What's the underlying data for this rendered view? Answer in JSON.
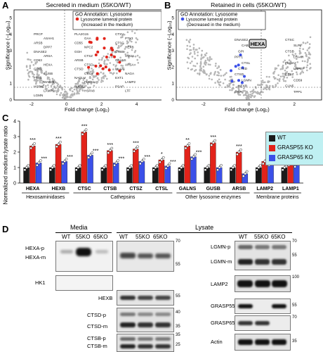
{
  "panel_a": {
    "letter": "A",
    "title": "Secreted in medium (55KO/WT)",
    "xlabel": "Fold change (Log₂)",
    "ylabel": "Significance (−Log₁₀)",
    "xticks": [
      "-2",
      "0",
      "2",
      "4"
    ],
    "yticks": [
      "0",
      "1",
      "2",
      "3",
      "4",
      "5"
    ],
    "legend_title": "GO Annotation: Lysosome",
    "legend_item": "Lysosome lumenal protein",
    "legend_note": "(Increased in the medium)",
    "gene_labels": [
      "PRCP",
      "PLA2G15",
      "CTSV",
      "ASAH1",
      "GAA",
      "PTX3",
      "ARSB",
      "CD55",
      "CTSC",
      "DPP7",
      "NPC2",
      "HEXB",
      "DNASE2",
      "GGH",
      "CTSB",
      "ARSA",
      "CTSZ",
      "GM2A",
      "CD63",
      "ARSB",
      "GALNS",
      "HEXA",
      "CTSD",
      "ARSA",
      "CD59",
      "CTSD",
      "HLA-C",
      "GUSB",
      "CTSA",
      "NAGA",
      "FTH1",
      "NAGLU",
      "EXT1",
      "MAN2B1",
      "FUCA1",
      "LAMP2",
      "HSPA5",
      "FUCA2",
      "PSAP",
      "LAMP1",
      "HSPA8",
      "LTF",
      "LGMN"
    ]
  },
  "panel_b": {
    "letter": "B",
    "title": "Retained in cells (55KO/WT)",
    "xlabel": "Fold change (Log₂)",
    "ylabel": "Significance (−Log₁₀)",
    "xticks": [
      "-2",
      "0",
      "2"
    ],
    "yticks": [
      "0",
      "1",
      "2",
      "3",
      "4",
      "5"
    ],
    "legend_title": "GO Annotation: Lysosome",
    "legend_item": "Lysosome lumenal protein",
    "legend_note": "(Decreased in the medium)",
    "highlight_label": "HEXA",
    "gene_labels": [
      "DNASE2",
      "CTSC",
      "CAB39",
      "SLPI",
      "GPI",
      "CTSB",
      "PPT1",
      "LTA4H",
      "CTSL",
      "FUCA2",
      "CTSD",
      "LNPEP",
      "CTSD",
      "CTSZ",
      "LGMN",
      "CD59",
      "HEXB",
      "CLN5",
      "GGA",
      "TPP1"
    ]
  },
  "panel_c": {
    "letter": "C",
    "ylabel": "Normalized medium:lysate ratio",
    "yticks": [
      "0",
      "1",
      "2",
      "3",
      "4"
    ],
    "legend": [
      {
        "name": "WT",
        "color": "#1a1a1a"
      },
      {
        "name": "GRASP55 KO",
        "color": "#e2231a"
      },
      {
        "name": "GRASP65 KO",
        "color": "#3b50e8"
      }
    ],
    "groups": [
      {
        "label": "Hexosaminidases",
        "span": [
          0,
          1
        ]
      },
      {
        "label": "Cathepsins",
        "span": [
          2,
          5
        ]
      },
      {
        "label": "Other lysosome enzymes",
        "span": [
          6,
          8
        ]
      },
      {
        "label": "Membrane proteins",
        "span": [
          9,
          10
        ]
      }
    ]
  },
  "chart_data": {
    "type": "bar",
    "categories": [
      "HEXA",
      "HEXB",
      "CTSC",
      "CTSB",
      "CTSZ",
      "CTSL",
      "GALNS",
      "GUSB",
      "ARSB",
      "LAMP2",
      "LAMP1"
    ],
    "series": [
      {
        "name": "WT",
        "values": [
          1,
          1,
          1,
          1,
          1,
          1,
          1,
          1,
          1,
          1,
          1
        ]
      },
      {
        "name": "GRASP55 KO",
        "values": [
          2.4,
          2.5,
          3.3,
          2.1,
          2.2,
          1.5,
          2.4,
          2.6,
          2.0,
          1.4,
          1.3
        ]
      },
      {
        "name": "GRASP65 KO",
        "values": [
          1.3,
          1.4,
          1.8,
          1.3,
          1.4,
          1.1,
          1.7,
          1.0,
          0.6,
          1.3,
          1.2
        ]
      }
    ],
    "significance": {
      "GRASP55 KO": [
        "***",
        "***",
        "***",
        "***",
        "***",
        "*",
        "**",
        "***",
        "***",
        "",
        ""
      ],
      "GRASP65 KO": [
        "***",
        "***",
        "***",
        "***",
        "***",
        "***",
        "***",
        "",
        "",
        "",
        ""
      ]
    },
    "ylabel": "Normalized medium:lysate ratio",
    "ylim": [
      0,
      4
    ],
    "grid": false,
    "legend_position": "top-right"
  },
  "panel_d": {
    "letter": "D",
    "media_header": "Media",
    "lysate_header": "Lysate",
    "lanes": [
      "WT",
      "55KO",
      "65KO"
    ],
    "blots": {
      "hexa": [
        "HEXA-p",
        "HEXA-m"
      ],
      "hk1": "HK1",
      "hexb": "HEXB",
      "ctsd": [
        "CTSD-p",
        "CTSD-m"
      ],
      "ctsb": [
        "CTSB-p",
        "CTSB-m"
      ],
      "lgmn": [
        "LGMN-p",
        "LGMN-m"
      ],
      "lamp2": "LAMP2",
      "grasp55": "GRASP55",
      "grasp65": "GRASP65",
      "actin": "Actin"
    },
    "markers": {
      "hexa": [
        "70",
        "55"
      ],
      "hexb": "55",
      "ctsd": [
        "40",
        "35"
      ],
      "ctsb": [
        "35",
        "25"
      ],
      "lgmn": [
        "70",
        "55"
      ],
      "lamp2": "100",
      "grasp55": "55",
      "grasp65": "70",
      "actin": "35"
    }
  }
}
